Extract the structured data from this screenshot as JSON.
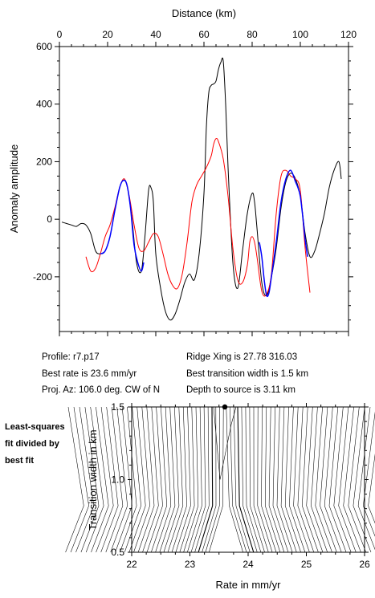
{
  "chart_data": [
    {
      "type": "line",
      "xlabel": "Distance (km)",
      "ylabel": "Anomaly amplitude",
      "xlim": [
        0,
        120
      ],
      "ylim": [
        -390,
        600
      ],
      "x_ticks": [
        0,
        20,
        40,
        60,
        80,
        100,
        120
      ],
      "y_ticks": [
        -200,
        0,
        200,
        400,
        600
      ],
      "grid": false,
      "series": [
        {
          "color": "#000000",
          "x": [
            1,
            3,
            5,
            7,
            9,
            11,
            13,
            15,
            17,
            19,
            21,
            23,
            25,
            26.5,
            28,
            30,
            32,
            34,
            35.5,
            37,
            38,
            39,
            40,
            42,
            44,
            46,
            48,
            50,
            52,
            54,
            56,
            58,
            60,
            61,
            62,
            63,
            64,
            65,
            66,
            67,
            68,
            69,
            70,
            72,
            74,
            76,
            78,
            80,
            81,
            82,
            84,
            86,
            88,
            90,
            92,
            94,
            96,
            98,
            100,
            102,
            104,
            106,
            108,
            110,
            112,
            114,
            116,
            117
          ],
          "y": [
            -10,
            -15,
            -20,
            -25,
            -15,
            -20,
            -50,
            -110,
            -120,
            -110,
            -60,
            30,
            110,
            135,
            120,
            10,
            -150,
            -180,
            -60,
            100,
            110,
            60,
            -120,
            -240,
            -320,
            -350,
            -330,
            -280,
            -220,
            -190,
            -210,
            -120,
            90,
            320,
            440,
            465,
            470,
            480,
            520,
            545,
            550,
            400,
            180,
            -150,
            -240,
            -110,
            20,
            90,
            60,
            -30,
            -220,
            -265,
            -200,
            -100,
            40,
            130,
            160,
            140,
            80,
            -50,
            -130,
            -110,
            -50,
            20,
            110,
            170,
            200,
            140
          ]
        },
        {
          "color": "#ff0000",
          "x": [
            11,
            13,
            15,
            17,
            19,
            21,
            23,
            25,
            27,
            29,
            31,
            33,
            35,
            37,
            39,
            41,
            43,
            45,
            47,
            49,
            51,
            53,
            55,
            57,
            59,
            61,
            63,
            64,
            65,
            66,
            68,
            70,
            72,
            74,
            76,
            78,
            79,
            80,
            81,
            82,
            84,
            86,
            88,
            90,
            92,
            94,
            96,
            98,
            100,
            102,
            104
          ],
          "y": [
            -130,
            -180,
            -170,
            -120,
            -60,
            -20,
            40,
            110,
            140,
            80,
            -20,
            -100,
            -110,
            -80,
            -50,
            -60,
            -120,
            -190,
            -230,
            -240,
            -190,
            -80,
            60,
            120,
            150,
            180,
            220,
            260,
            280,
            270,
            210,
            80,
            -100,
            -210,
            -220,
            -160,
            -80,
            -60,
            -80,
            -130,
            -250,
            -260,
            -190,
            20,
            150,
            170,
            150,
            140,
            100,
            -100,
            -255
          ]
        },
        {
          "color": "#0000ff",
          "x": [
            17,
            19,
            21,
            23,
            25,
            26.5,
            28,
            29.5,
            31,
            32.5,
            34,
            35
          ],
          "y": [
            -120,
            -110,
            -60,
            30,
            110,
            135,
            120,
            40,
            -90,
            -150,
            -180,
            -150
          ]
        },
        {
          "color": "#0000ff",
          "x": [
            83,
            84,
            85,
            86,
            87,
            88,
            90,
            92,
            94,
            96,
            98,
            99,
            100,
            101,
            102,
            103
          ],
          "y": [
            -80,
            -130,
            -210,
            -265,
            -255,
            -200,
            -80,
            60,
            140,
            170,
            130,
            110,
            80,
            10,
            -70,
            -130
          ]
        }
      ]
    },
    {
      "type": "contour",
      "xlabel": "Rate in mm/yr",
      "ylabel": "Transition width in km",
      "xlim": [
        22,
        26
      ],
      "ylim": [
        0.5,
        1.5
      ],
      "x_ticks": [
        22,
        23,
        24,
        25,
        26
      ],
      "y_ticks": [
        0.5,
        1.0,
        1.5
      ],
      "best_fit_point": {
        "x": 23.6,
        "y": 1.5
      }
    }
  ],
  "info": {
    "profile": "Profile: r7.p17",
    "ridge_xing": "Ridge Xing is 27.78 316.03",
    "best_rate": "Best rate is 23.6 mm/yr",
    "best_width": "Best transition width is 1.5 km",
    "proj_az": "Proj. Az: 106.0 deg. CW of N",
    "depth": "Depth to source is   3.11 km"
  },
  "side_note": [
    "Least-squares",
    "fit divided by",
    "best fit"
  ]
}
